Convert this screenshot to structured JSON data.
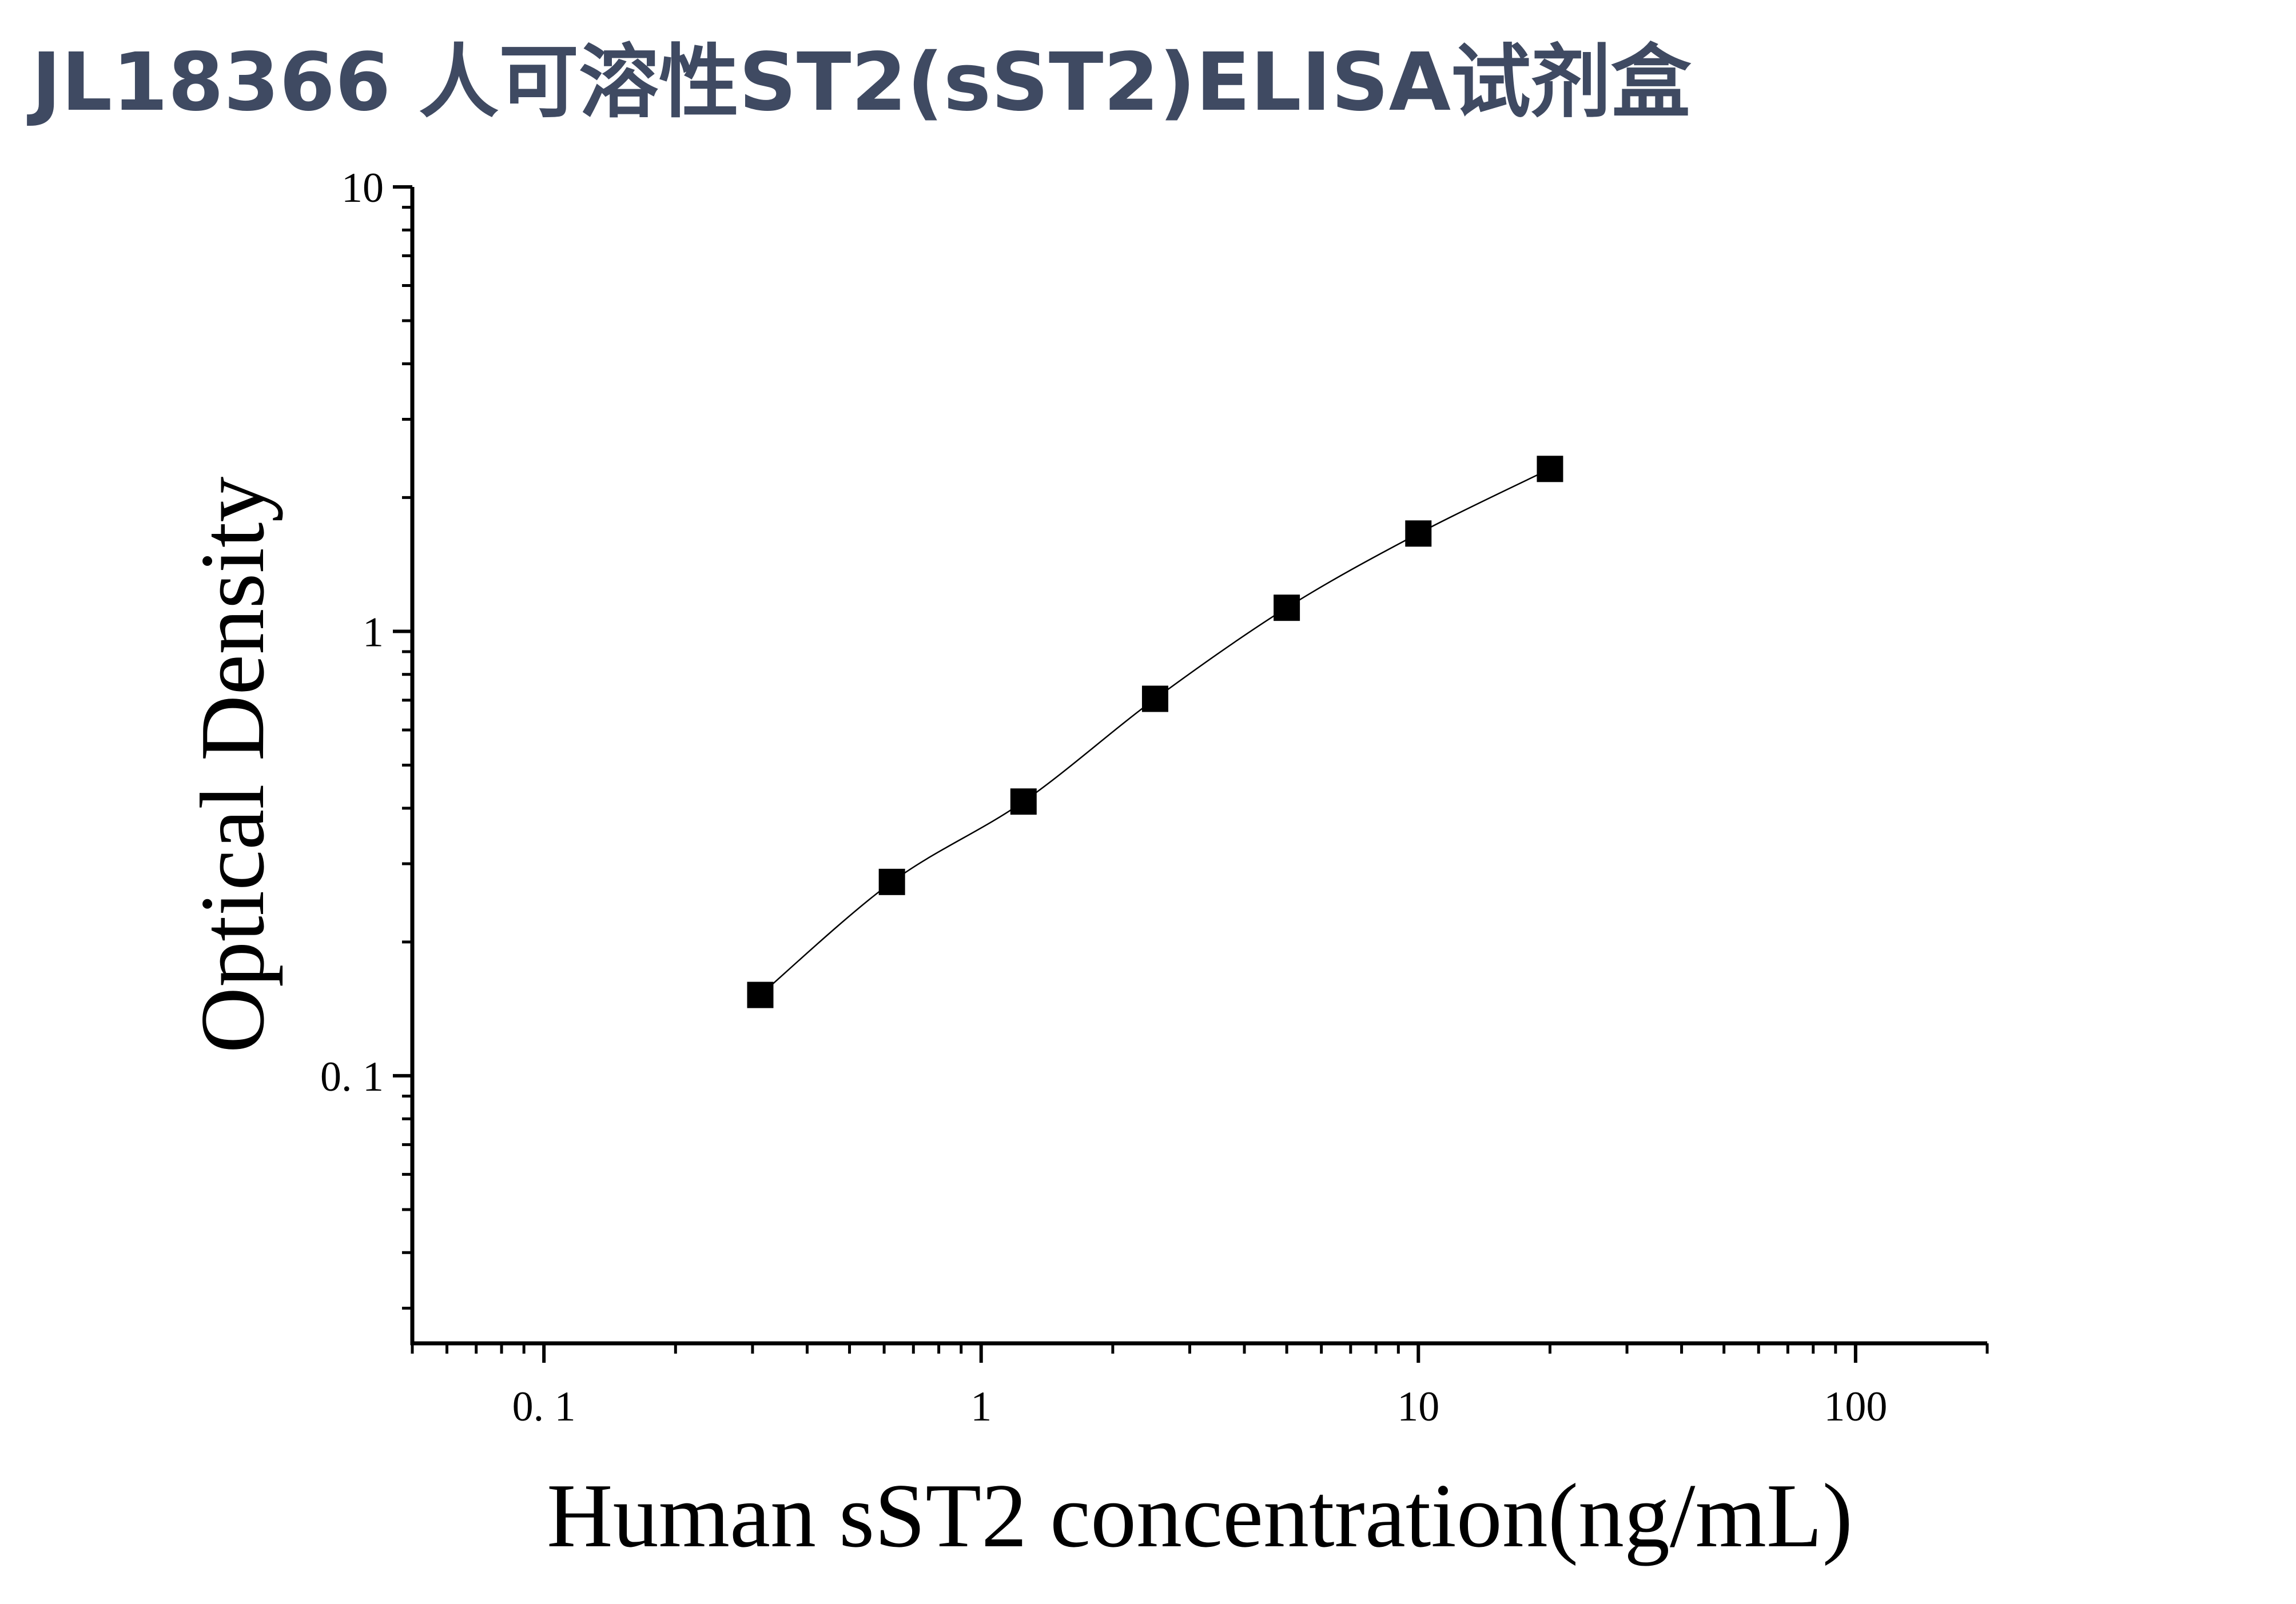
{
  "chart_data": {
    "type": "scatter",
    "title": "JL18366 人可溶性ST2(sST2)ELISA试剂盒",
    "x_label": "Human sST2 concentration(ng/mL)",
    "y_label": "Optical Density",
    "x": [
      0.3125,
      0.625,
      1.25,
      2.5,
      5,
      10,
      20
    ],
    "series": [
      {
        "values": [
          0.152,
          0.273,
          0.414,
          0.705,
          1.13,
          1.66,
          2.32
        ],
        "color": "#000000"
      }
    ],
    "xlim": [
      0.05,
      200
    ],
    "ylim": [
      0.025,
      10
    ],
    "xticks": [
      {
        "value": 0.1,
        "label": "0. 1"
      },
      1,
      10,
      100
    ],
    "yticks": [
      {
        "value": 0.1,
        "label": "0. 1"
      },
      1,
      10
    ],
    "xscale": "log",
    "yscale": "log",
    "fit_line": true,
    "minor_ticks": true
  }
}
